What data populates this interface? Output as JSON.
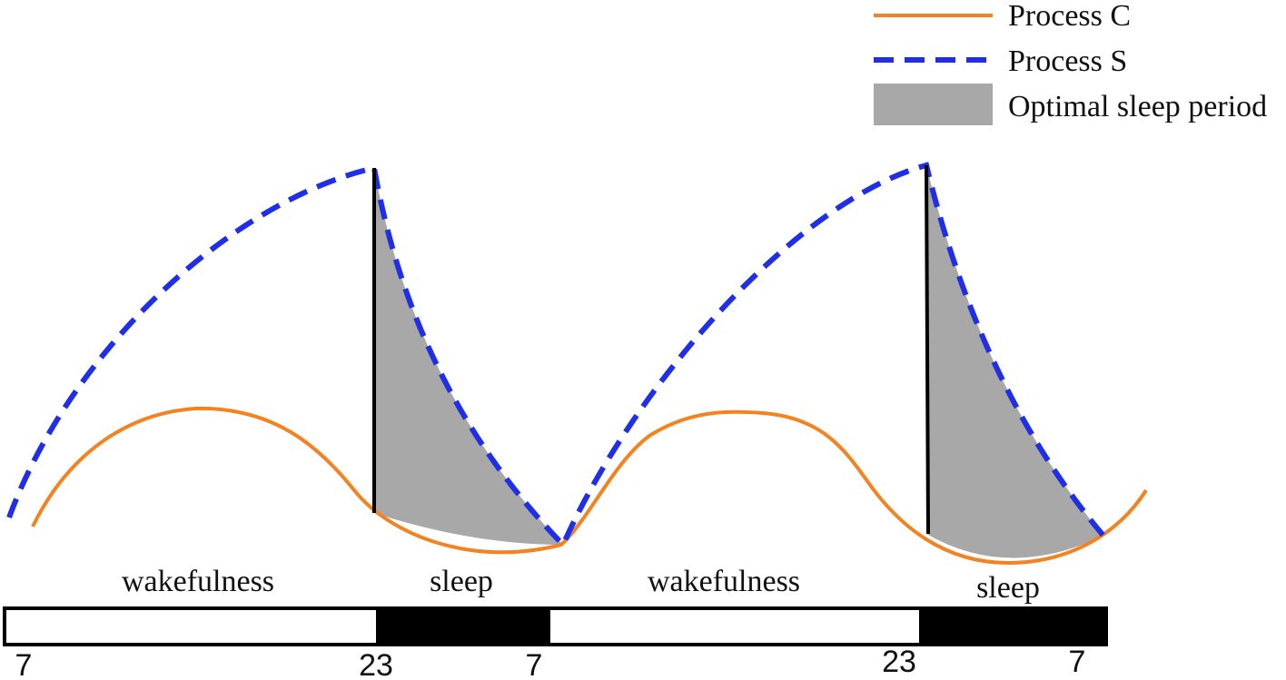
{
  "legend": {
    "process_c": "Process C",
    "process_s": "Process S",
    "optimal_sleep": "Optimal sleep period"
  },
  "colors": {
    "process_c": "#f58220",
    "process_s": "#1f2ee8",
    "optimal_sleep": "#a8a8a8",
    "bar_dark": "#000000",
    "bar_light": "#ffffff"
  },
  "phases": [
    {
      "label": "wakefulness"
    },
    {
      "label": "sleep"
    },
    {
      "label": "wakefulness"
    },
    {
      "label": "sleep"
    }
  ],
  "ticks": [
    "7",
    "23",
    "7",
    "23",
    "7"
  ]
}
